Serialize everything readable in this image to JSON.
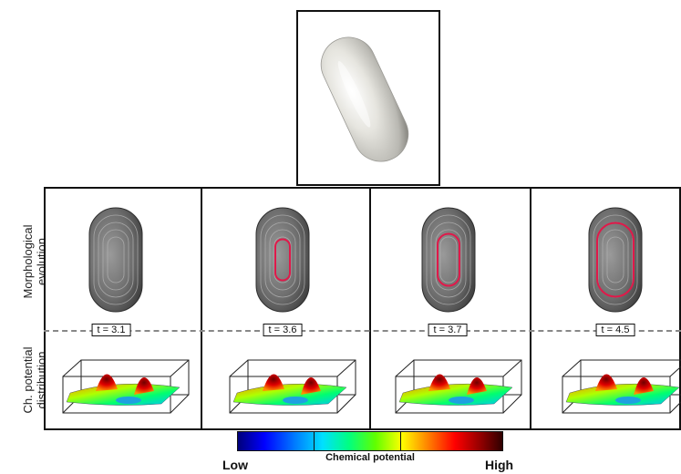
{
  "row_labels": {
    "top": "Morphological evolution",
    "top_line1": "Morphological",
    "top_line2": "evolution",
    "bottom_line1": "Ch. potential",
    "bottom_line2": "distribution"
  },
  "panels": [
    {
      "time": "t = 3.1",
      "ring": 0
    },
    {
      "time": "t = 3.6",
      "ring": 0.25
    },
    {
      "time": "t = 3.7",
      "ring": 0.45
    },
    {
      "time": "t = 4.5",
      "ring": 0.85
    }
  ],
  "colorbar": {
    "title": "Chemical potential",
    "low": "Low",
    "high": "High"
  },
  "colors": {
    "ring": "#e0194a",
    "shell": "#6a6a6a",
    "top_shape": "#e9e8e2"
  }
}
